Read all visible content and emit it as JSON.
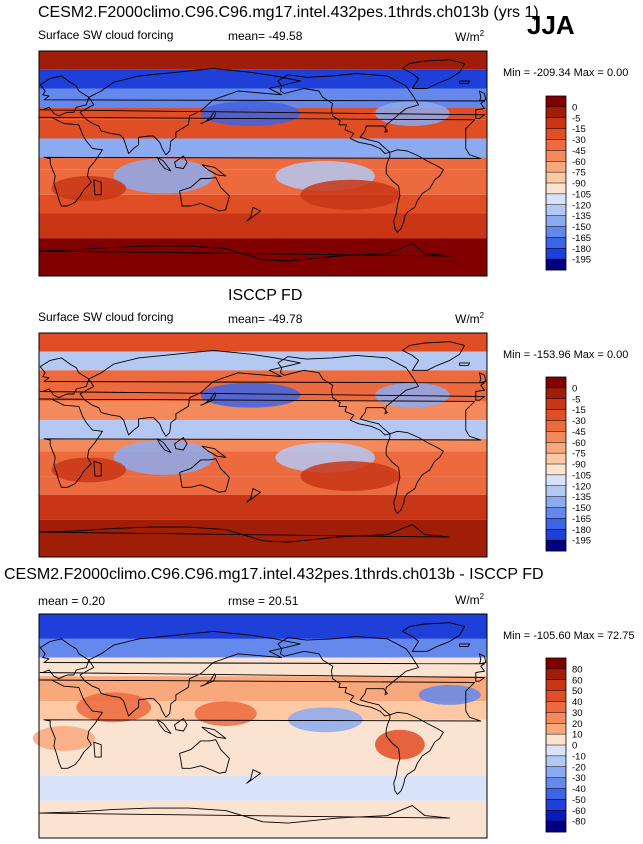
{
  "season": "JJA",
  "units_base": "W/m",
  "units_exp": "2",
  "colors": {
    "cool": [
      "#000080",
      "#0a1ab8",
      "#1e3fd8",
      "#3c64e6",
      "#6488ec",
      "#8caaf0",
      "#b4c8f4",
      "#d8e2f8"
    ],
    "warm": [
      "#fbe3d2",
      "#fdc9a4",
      "#f9a87c",
      "#f48a5c",
      "#ed6a3e",
      "#e04e25",
      "#c83616",
      "#a01e08",
      "#800000"
    ],
    "land": "#ffffff",
    "coast": "#000000"
  },
  "chart_data": [
    {
      "type": "heatmap",
      "title": "CESM2.F2000climo.C96.C96.mg17.intel.432pes.1thrds.ch013b (yrs 1)",
      "subtitle": "Surface SW cloud forcing",
      "stat_text": "mean= -49.58",
      "minmax_text": "Min = -209.34 Max =   0.00",
      "mean": -49.58,
      "min": -209.34,
      "max": 0.0,
      "colorbar_levels": [
        "0",
        "-5",
        "-15",
        "-30",
        "-45",
        "-60",
        "-75",
        "-90",
        "-105",
        "-120",
        "-135",
        "-150",
        "-165",
        "-180",
        "-195"
      ],
      "colorbar_range": [
        -195,
        0
      ],
      "lon_range": [
        0,
        360
      ],
      "lat_range": [
        -90,
        90
      ]
    },
    {
      "type": "heatmap",
      "title": "ISCCP FD",
      "subtitle": "Surface SW cloud forcing",
      "stat_text": "mean= -49.78",
      "minmax_text": "Min = -153.96 Max =   0.00",
      "mean": -49.78,
      "min": -153.96,
      "max": 0.0,
      "colorbar_levels": [
        "0",
        "-5",
        "-15",
        "-30",
        "-45",
        "-60",
        "-75",
        "-90",
        "-105",
        "-120",
        "-135",
        "-150",
        "-165",
        "-180",
        "-195"
      ],
      "colorbar_range": [
        -195,
        0
      ],
      "lon_range": [
        0,
        360
      ],
      "lat_range": [
        -90,
        90
      ]
    },
    {
      "type": "heatmap",
      "title": "CESM2.F2000climo.C96.C96.mg17.intel.432pes.1thrds.ch013b - ISCCP FD",
      "stat_text": "mean =   0.20",
      "rmse_text": "rmse =  20.51",
      "minmax_text": "Min = -105.60 Max =  72.75",
      "mean": 0.2,
      "rmse": 20.51,
      "min": -105.6,
      "max": 72.75,
      "colorbar_levels": [
        "80",
        "60",
        "50",
        "40",
        "30",
        "20",
        "10",
        "0",
        "-10",
        "-20",
        "-30",
        "-40",
        "-50",
        "-60",
        "-80"
      ],
      "colorbar_range": [
        -80,
        80
      ],
      "lon_range": [
        0,
        360
      ],
      "lat_range": [
        -90,
        90
      ]
    }
  ]
}
